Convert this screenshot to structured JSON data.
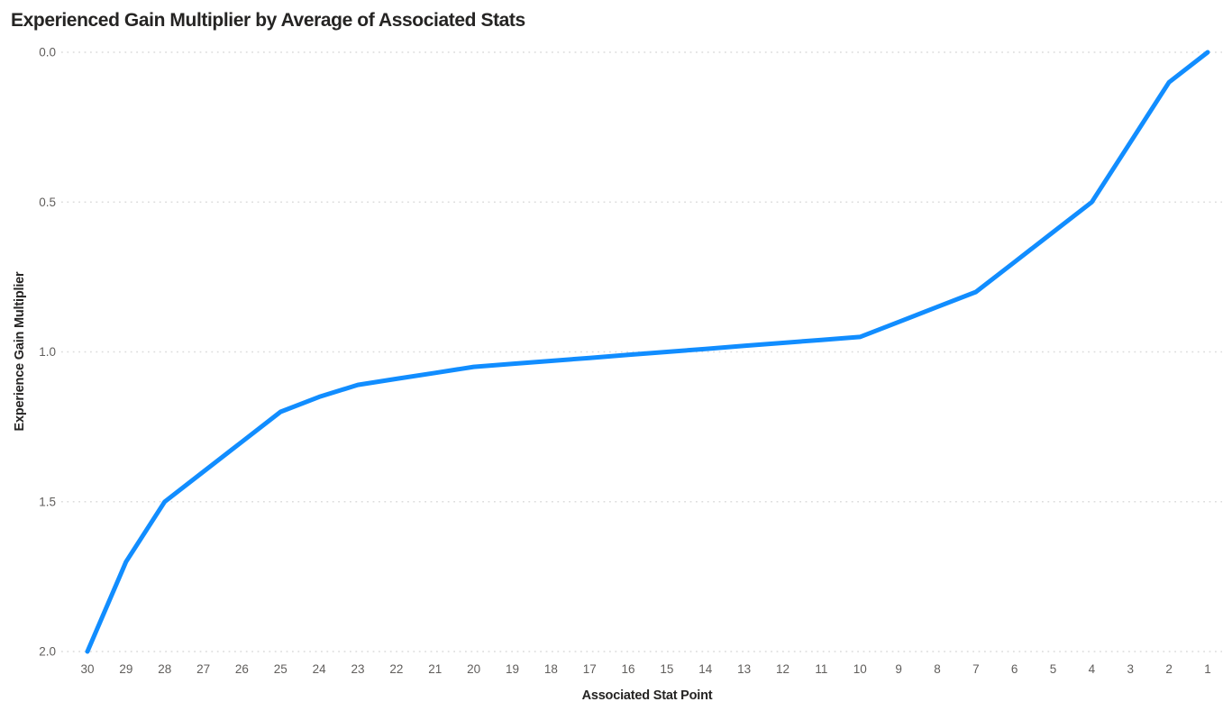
{
  "chart": {
    "title": "Experienced Gain Multiplier by Average of Associated Stats",
    "x_axis_title": "Associated Stat Point",
    "y_axis_title": "Experience Gain Multiplier"
  },
  "chart_data": {
    "type": "line",
    "title": "Experienced Gain Multiplier by Average of Associated Stats",
    "xlabel": "Associated Stat Point",
    "ylabel": "Experience Gain Multiplier",
    "categories": [
      30,
      29,
      28,
      27,
      26,
      25,
      24,
      23,
      22,
      21,
      20,
      19,
      18,
      17,
      16,
      15,
      14,
      13,
      12,
      11,
      10,
      9,
      8,
      7,
      6,
      5,
      4,
      3,
      2,
      1
    ],
    "values": [
      2.0,
      1.7,
      1.5,
      1.4,
      1.3,
      1.2,
      1.15,
      1.11,
      1.09,
      1.07,
      1.05,
      1.04,
      1.03,
      1.02,
      1.01,
      1.0,
      0.99,
      0.98,
      0.97,
      0.96,
      0.95,
      0.9,
      0.85,
      0.8,
      0.7,
      0.6,
      0.5,
      0.3,
      0.1,
      0.0
    ],
    "y_ticks": [
      0.0,
      0.5,
      1.0,
      1.5,
      2.0
    ],
    "ylim": [
      0.0,
      2.0
    ],
    "y_axis_inverted": true,
    "x_axis_reversed": true,
    "grid": "horizontal-dotted",
    "legend": "none",
    "colors": {
      "line": "#118DFF",
      "gridline": "#DCDCDC",
      "tick_label": "#605E5C",
      "title": "#252423",
      "background": "#FFFFFF"
    }
  }
}
